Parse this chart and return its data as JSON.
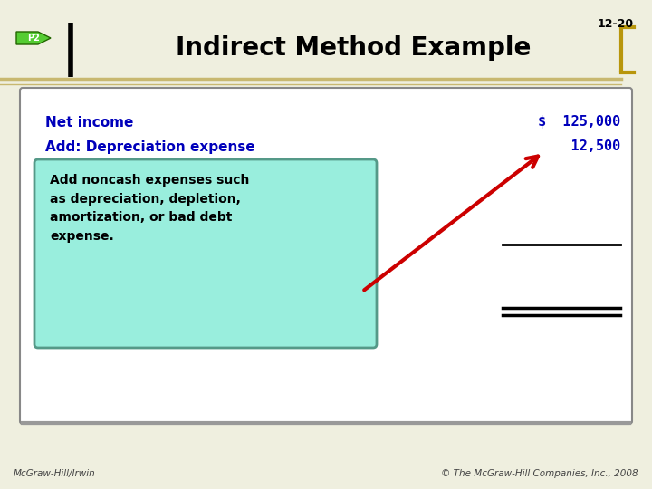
{
  "bg_color": "#efefdf",
  "title": "Indirect Method Example",
  "title_color": "#000000",
  "title_fontsize": 20,
  "slide_num": "12-20",
  "slide_num_color": "#000000",
  "p2_label": "P2",
  "p2_bg": "#55cc33",
  "p2_border": "#226600",
  "header_line_color": "#c8b870",
  "bracket_color": "#b8960c",
  "box_bg": "#ffffff",
  "box_border": "#888888",
  "line1_label": "Net income",
  "line1_value": "$  125,000",
  "line2_label": "Add: Depreciation expense",
  "line2_value": "    12,500",
  "label_color": "#0000bb",
  "value_color": "#0000bb",
  "label_fontsize": 11,
  "value_fontsize": 11,
  "tooltip_bg": "#99eedd",
  "tooltip_border": "#559988",
  "tooltip_text": "Add noncash expenses such\nas depreciation, depletion,\namortization, or bad debt\nexpense.",
  "tooltip_text_color": "#000000",
  "tooltip_fontsize": 10,
  "arrow_color": "#cc0000",
  "footer_left": "McGraw-Hill/Irwin",
  "footer_right": "© The McGraw-Hill Companies, Inc., 2008",
  "footer_color": "#444444",
  "footer_fontsize": 7.5
}
